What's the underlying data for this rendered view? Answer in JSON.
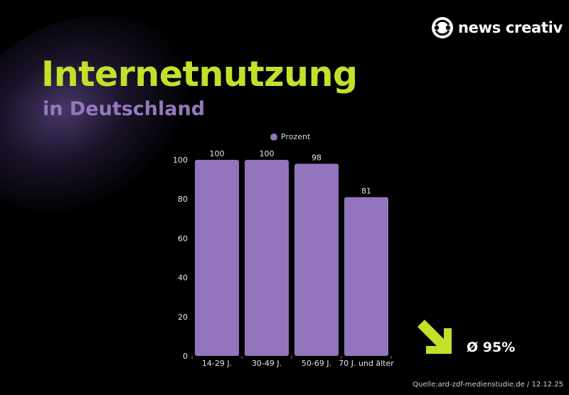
{
  "brand": {
    "name": "news creativ",
    "logo_icon": "news-creativ-logo-icon"
  },
  "colors": {
    "background": "#000000",
    "accent_green": "#c3e02b",
    "accent_purple": "#9375be"
  },
  "chart_data": {
    "type": "bar",
    "title": "Internetnutzung",
    "subtitle": "in Deutschland",
    "categories": [
      "14-29 J.",
      "30-49 J.",
      "50-69 J.",
      "70 J. und älter"
    ],
    "series": [
      {
        "name": "Prozent",
        "values": [
          100,
          100,
          98,
          81
        ],
        "color": "#9375be"
      }
    ],
    "ylim": [
      0,
      100
    ],
    "yticks": [
      0,
      20,
      40,
      60,
      80,
      100
    ],
    "grid": false,
    "legend": "top-center",
    "data_labels": true
  },
  "average": {
    "icon": "arrow-down-right-icon",
    "label": "Ø 95%"
  },
  "source": "Quelle:ard-zdf-medienstudie.de / 12.12.25"
}
